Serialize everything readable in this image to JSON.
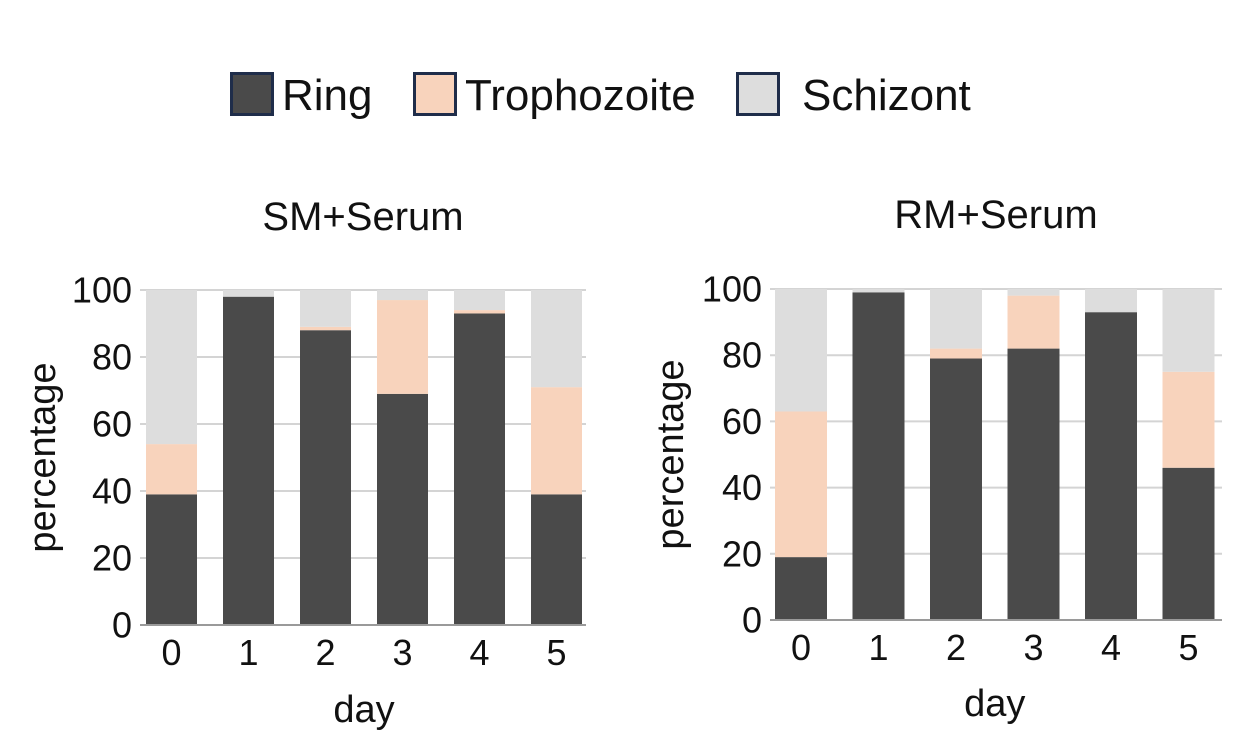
{
  "colors": {
    "Ring": "#4a4a4a",
    "Trophozoite": "#f8d3bc",
    "Schizont": "#dddddd",
    "grid": "#d4d4d4",
    "axis": "#9a9a9a",
    "legend_border": "#1f2d4a"
  },
  "legend": {
    "items": [
      {
        "label": "Ring",
        "color": "#4a4a4a"
      },
      {
        "label": "Trophozoite",
        "color": "#f8d3bc"
      },
      {
        "label": "Schizont",
        "color": "#dddddd"
      }
    ]
  },
  "chart_data": [
    {
      "type": "bar",
      "stacked": true,
      "title": "SM+Serum",
      "xlabel": "day",
      "ylabel": "percentage",
      "categories": [
        "0",
        "1",
        "2",
        "3",
        "4",
        "5"
      ],
      "yticks": [
        "0",
        "20",
        "40",
        "60",
        "80",
        "100"
      ],
      "ylim": [
        0,
        100
      ],
      "grid": true,
      "series": [
        {
          "name": "Ring",
          "values": [
            39,
            98,
            88,
            69,
            93,
            39
          ]
        },
        {
          "name": "Trophozoite",
          "values": [
            15,
            0,
            1,
            28,
            1,
            32
          ]
        },
        {
          "name": "Schizont",
          "values": [
            46,
            2,
            11,
            3,
            6,
            29
          ]
        }
      ]
    },
    {
      "type": "bar",
      "stacked": true,
      "title": "RM+Serum",
      "xlabel": "day",
      "ylabel": "percentage",
      "categories": [
        "0",
        "1",
        "2",
        "3",
        "4",
        "5"
      ],
      "yticks": [
        "0",
        "20",
        "40",
        "60",
        "80",
        "100"
      ],
      "ylim": [
        0,
        100
      ],
      "grid": true,
      "series": [
        {
          "name": "Ring",
          "values": [
            19,
            99,
            79,
            82,
            93,
            46
          ]
        },
        {
          "name": "Trophozoite",
          "values": [
            44,
            0,
            3,
            16,
            0,
            29
          ]
        },
        {
          "name": "Schizont",
          "values": [
            37,
            1,
            18,
            2,
            7,
            25
          ]
        }
      ]
    }
  ]
}
